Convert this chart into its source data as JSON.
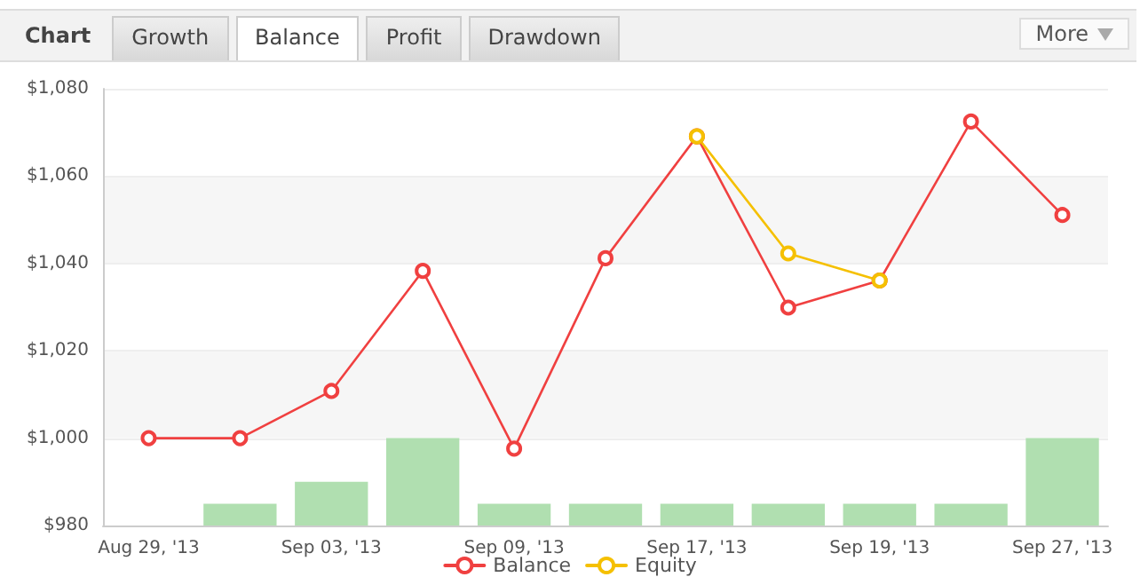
{
  "chart_data": {
    "type": "line",
    "title": "Chart",
    "annotations": [
      "Growth",
      "Balance",
      "Profit",
      "Drawdown",
      "More"
    ],
    "categories": [
      "Aug 29, '13",
      null,
      "Sep 03, '13",
      null,
      "Sep 09, '13",
      null,
      "Sep 17, '13",
      null,
      "Sep 19, '13",
      null,
      "Sep 27, '13"
    ],
    "series": [
      {
        "type": "bar",
        "color": "#b0dfb0",
        "values": [
          null,
          985,
          990,
          1000,
          985,
          985,
          985,
          985,
          985,
          985,
          1000
        ]
      },
      {
        "name": "Balance",
        "color": "#f04040",
        "values": [
          1000,
          1000,
          1010.8,
          1038.3,
          997.6,
          1041.2,
          1069.1,
          1029.9,
          1036.1,
          1072.5,
          1051.1
        ]
      },
      {
        "name": "Equity",
        "color": "#f5c000",
        "values": [
          null,
          null,
          null,
          null,
          null,
          null,
          1069.1,
          1042.3,
          1036.1,
          null,
          null
        ]
      }
    ],
    "ylim": [
      980,
      1080
    ],
    "yticks": [
      {
        "value": 980,
        "label": "$980"
      },
      {
        "value": 1000,
        "label": "$1,000"
      },
      {
        "value": 1020,
        "label": "$1,020"
      },
      {
        "value": 1040,
        "label": "$1,040"
      },
      {
        "value": 1060,
        "label": "$1,060"
      },
      {
        "value": 1080,
        "label": "$1,080"
      }
    ],
    "grid": "y",
    "legend": "bottom",
    "marker": "circle",
    "line_style": "solid"
  }
}
